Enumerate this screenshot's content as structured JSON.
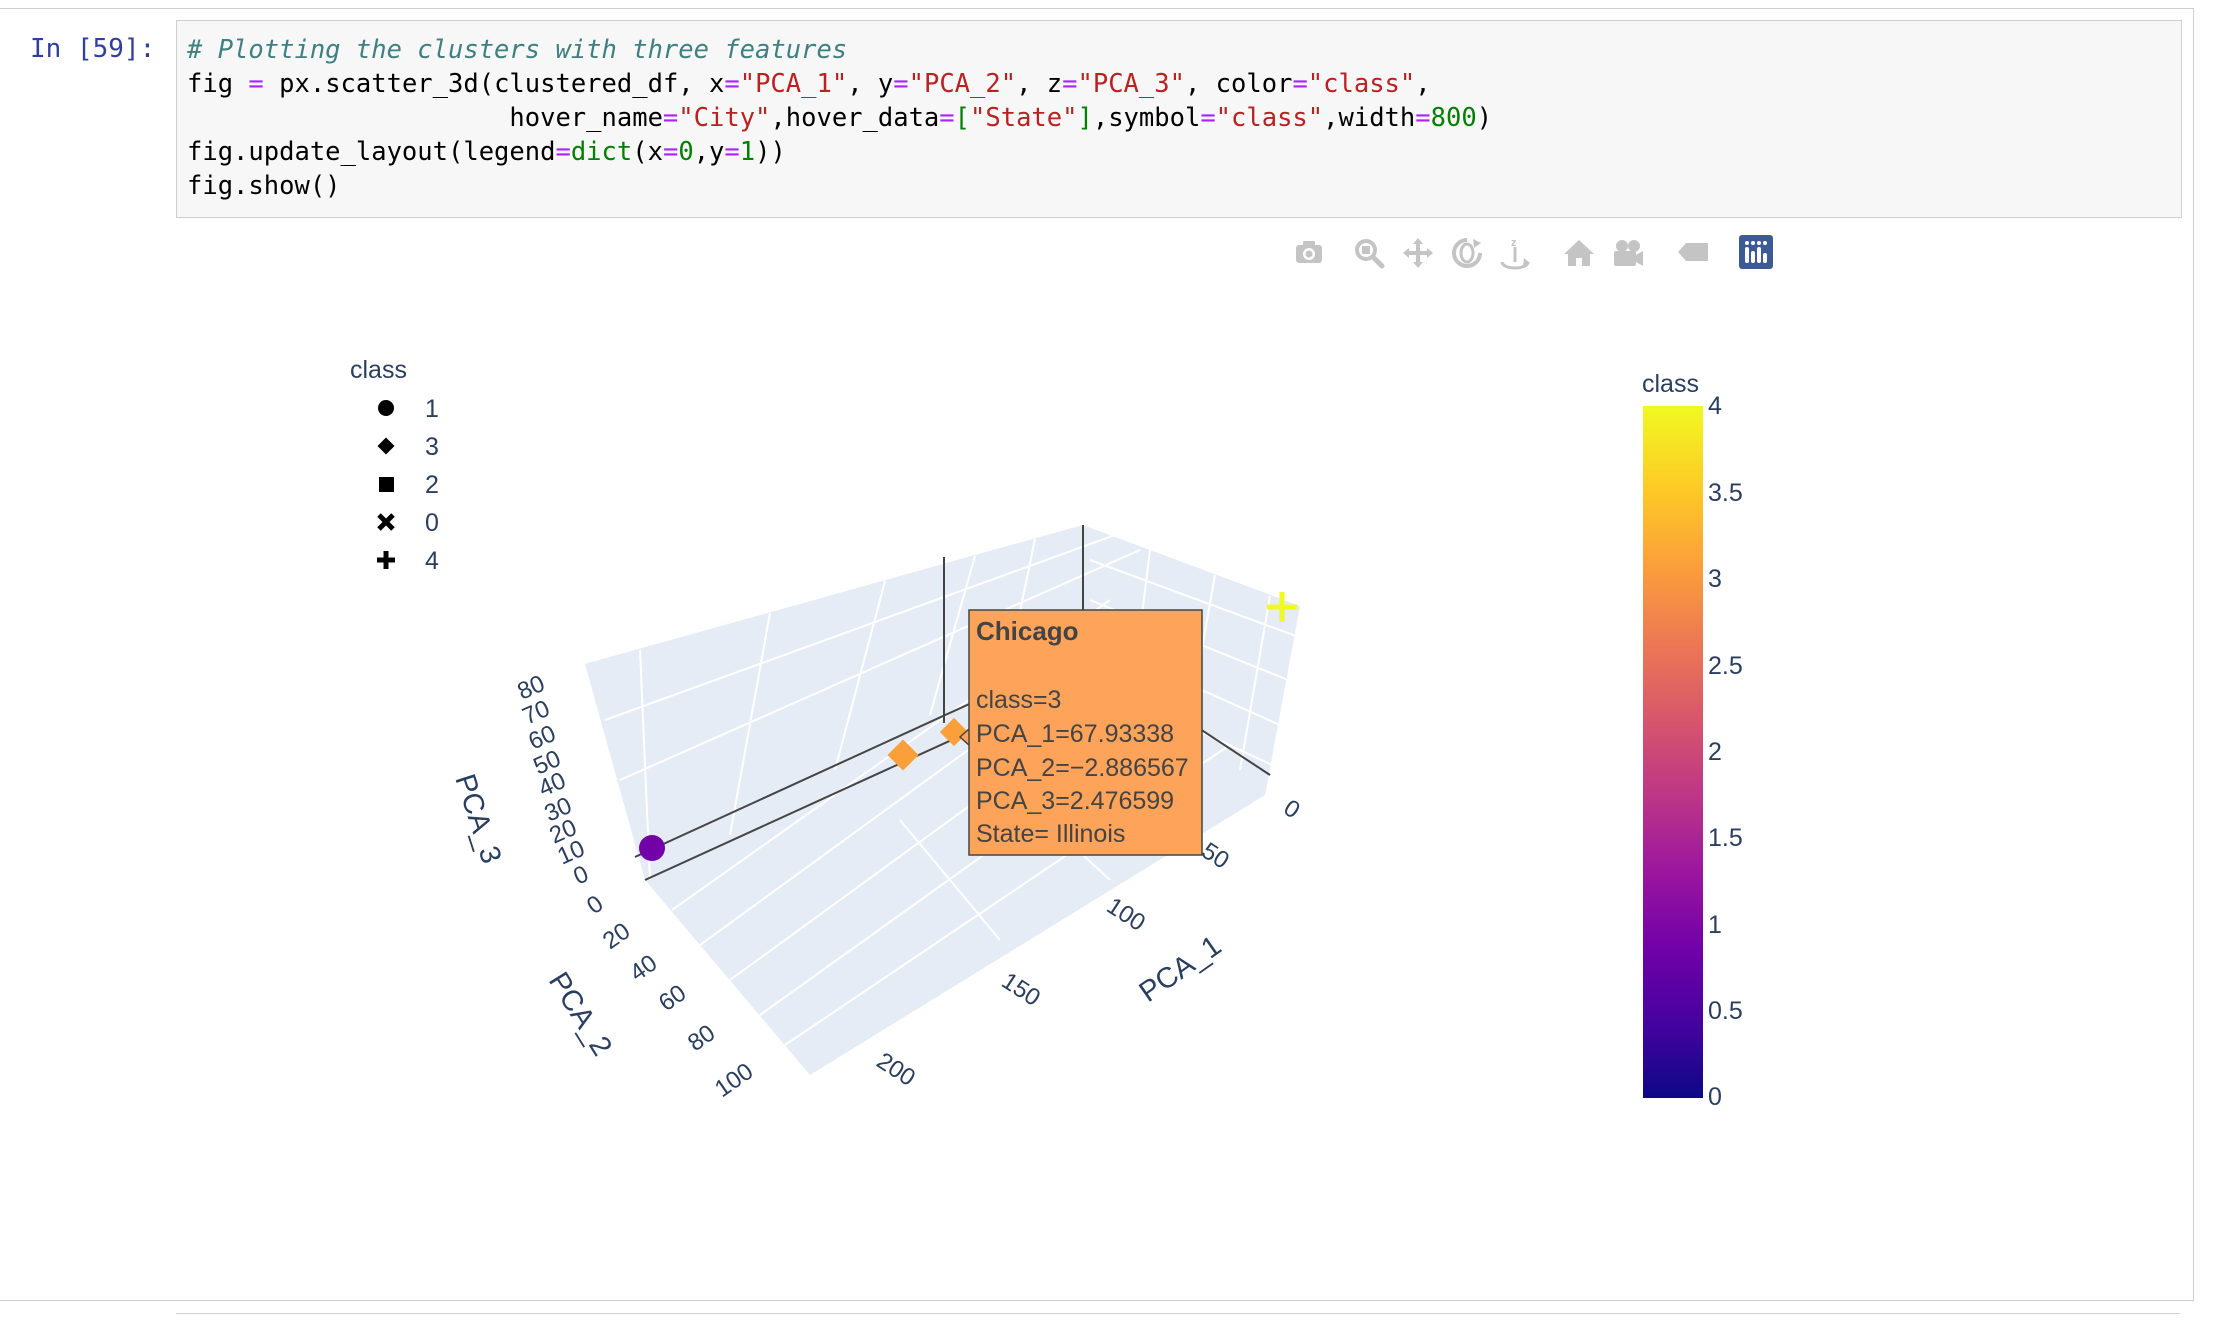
{
  "cell": {
    "prompt": "In [59]:",
    "code": {
      "line1_comment": "# Plotting the clusters with three features",
      "line2": {
        "a": "fig ",
        "eq": "=",
        "b": " px.scatter_3d(clustered_df, x",
        "eq2": "=",
        "s1": "\"PCA_1\"",
        "c": ", y",
        "eq3": "=",
        "s2": "\"PCA_2\"",
        "d": ", z",
        "eq4": "=",
        "s3": "\"PCA_3\"",
        "e": ", color",
        "eq5": "=",
        "s4": "\"class\"",
        "f": ","
      },
      "line3": {
        "a": "                     hover_name",
        "eq": "=",
        "s1": "\"City\"",
        "b": ",hover_data",
        "eq2": "=",
        "lb": "[",
        "s2": "\"State\"",
        "rb": "]",
        "c": ",symbol",
        "eq3": "=",
        "s3": "\"class\"",
        "d": ",width",
        "eq4": "=",
        "n": "800",
        "e": ")"
      },
      "line4": {
        "a": "fig.update_layout(legend",
        "eq": "=",
        "k": "dict",
        "b": "(x",
        "eq2": "=",
        "n1": "0",
        "c": ",y",
        "eq3": "=",
        "n2": "1",
        "d": "))"
      },
      "line5": "fig.show()"
    }
  },
  "modebar": {
    "icons": [
      "camera-icon",
      "zoom-icon",
      "pan-icon",
      "orbit-rotation-icon",
      "turntable-rotation-icon",
      "reset-camera-home-icon",
      "reset-camera-last-save-icon",
      "toggle-hover-icon",
      "plotly-logo-icon"
    ]
  },
  "legend": {
    "title": "class",
    "items": [
      {
        "symbol": "circle",
        "label": "1"
      },
      {
        "symbol": "diamond",
        "label": "3"
      },
      {
        "symbol": "square",
        "label": "2"
      },
      {
        "symbol": "x",
        "label": "0"
      },
      {
        "symbol": "cross",
        "label": "4"
      }
    ]
  },
  "colorbar": {
    "title": "class",
    "ticks": [
      "4",
      "3.5",
      "3",
      "2.5",
      "2",
      "1.5",
      "1",
      "0.5",
      "0"
    ],
    "colors": [
      "#0d0887",
      "#46039f",
      "#7201a8",
      "#9c179e",
      "#bd3786",
      "#d8576b",
      "#ed7953",
      "#fb9f3a",
      "#fdca26",
      "#f0f921"
    ]
  },
  "chart_data": {
    "type": "scatter",
    "subtype": "3d",
    "axes": {
      "x": {
        "label": "PCA_1",
        "ticks": [
          "0",
          "50",
          "100",
          "150",
          "200"
        ]
      },
      "y": {
        "label": "PCA_2",
        "ticks": [
          "0",
          "20",
          "40",
          "60",
          "80",
          "100"
        ]
      },
      "z": {
        "label": "PCA_3",
        "ticks": [
          "0",
          "10",
          "20",
          "30",
          "40",
          "50",
          "60",
          "70",
          "80"
        ]
      }
    },
    "series": [
      {
        "name": "1",
        "symbol": "circle",
        "color": "#7201a8",
        "points": 1
      },
      {
        "name": "3",
        "symbol": "diamond",
        "color": "#fb9f3a",
        "points": 2
      },
      {
        "name": "4",
        "symbol": "cross",
        "color": "#f0f921",
        "points": 1
      }
    ],
    "hover": {
      "title": "Chicago",
      "lines": [
        "class=3",
        "PCA_1=67.93338",
        "PCA_2=−2.886567",
        "PCA_3=2.476599",
        "State= Illinois"
      ],
      "bgcolor": "#fda35a"
    }
  }
}
